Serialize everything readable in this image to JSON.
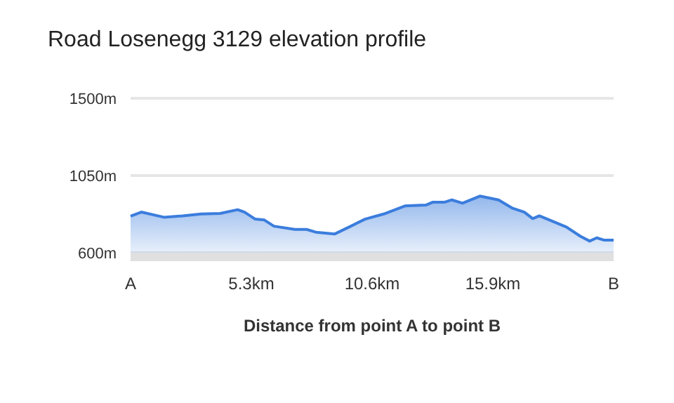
{
  "chart_data": {
    "type": "area",
    "title": "Road Losenegg 3129 elevation profile",
    "xlabel": "Distance from point A to point B",
    "x": [
      0,
      0.47,
      1.46,
      2.28,
      3.1,
      3.93,
      4.7,
      5.0,
      5.47,
      5.87,
      6.29,
      7.21,
      7.72,
      8.13,
      8.95,
      9.67,
      10.29,
      11.11,
      12.04,
      12.96,
      13.27,
      13.79,
      14.1,
      14.57,
      15.33,
      16.15,
      16.77,
      17.28,
      17.65,
      17.94,
      19.13,
      19.74,
      20.15,
      20.46,
      20.77,
      21.2
    ],
    "series": [
      {
        "color": "#3b7ddd",
        "values": [
          813,
          837,
          807,
          815,
          826,
          829,
          851,
          837,
          796,
          791,
          755,
          736,
          736,
          720,
          709,
          755,
          796,
          826,
          873,
          878,
          895,
          895,
          908,
          889,
          930,
          908,
          859,
          837,
          799,
          815,
          750,
          696,
          668,
          687,
          674,
          674
        ]
      }
    ],
    "xlim": [
      0,
      21.2
    ],
    "xticks": [
      {
        "value": 0,
        "label": "A"
      },
      {
        "value": 5.3,
        "label": "5.3km"
      },
      {
        "value": 10.6,
        "label": "10.6km"
      },
      {
        "value": 15.9,
        "label": "15.9km"
      },
      {
        "value": 21.2,
        "label": "B"
      }
    ],
    "ylim": [
      600,
      1500
    ],
    "yticks": [
      {
        "value": 600,
        "label": "600m"
      },
      {
        "value": 1050,
        "label": "1050m"
      },
      {
        "value": 1500,
        "label": "1500m"
      }
    ],
    "grid": "y"
  }
}
